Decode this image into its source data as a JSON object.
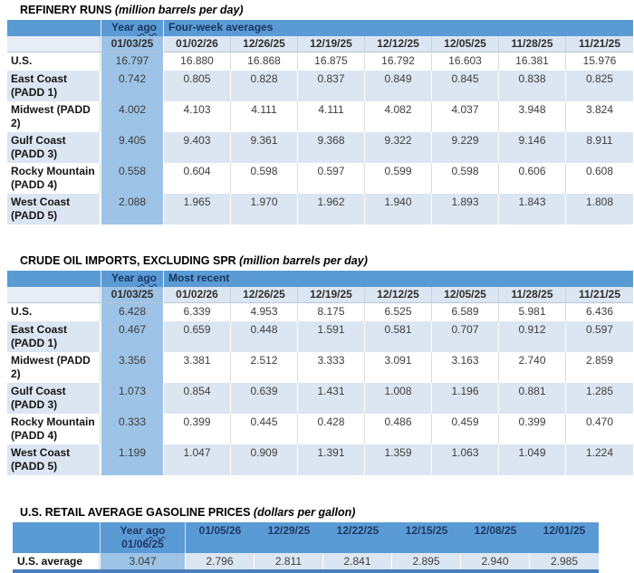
{
  "colors": {
    "header_blue": "#5b9bd5",
    "year_ago_band_blue": "#9dc3e6",
    "stripe_light_blue": "#dce6f2",
    "bottom_bar_blue": "#4a7ebc",
    "header_text_navy": "#17365d"
  },
  "tables": [
    {
      "title": "REFINERY RUNS",
      "title_unit": "(million barrels per day)",
      "year_ago_label": "Year ago",
      "group_label": "Four-week averages",
      "year_ago_date": "01/03/25",
      "dates": [
        "01/02/26",
        "12/26/25",
        "12/19/25",
        "12/12/25",
        "12/05/25",
        "11/28/25",
        "11/21/25"
      ],
      "rows": [
        {
          "label": "U.S.",
          "year_ago": "16.797",
          "values": [
            "16.880",
            "16.868",
            "16.875",
            "16.792",
            "16.603",
            "16.381",
            "15.976"
          ]
        },
        {
          "label": "East Coast (PADD 1)",
          "year_ago": "0.742",
          "values": [
            "0.805",
            "0.828",
            "0.837",
            "0.849",
            "0.845",
            "0.838",
            "0.825"
          ]
        },
        {
          "label": "Midwest (PADD 2)",
          "year_ago": "4.002",
          "values": [
            "4.103",
            "4.111",
            "4.111",
            "4.082",
            "4.037",
            "3.948",
            "3.824"
          ]
        },
        {
          "label": "Gulf Coast (PADD 3)",
          "year_ago": "9.405",
          "values": [
            "9.403",
            "9.361",
            "9.368",
            "9.322",
            "9.229",
            "9.146",
            "8.911"
          ]
        },
        {
          "label": "Rocky Mountain (PADD 4)",
          "year_ago": "0.558",
          "values": [
            "0.604",
            "0.598",
            "0.597",
            "0.599",
            "0.598",
            "0.606",
            "0.608"
          ]
        },
        {
          "label": "West Coast (PADD 5)",
          "year_ago": "2.088",
          "values": [
            "1.965",
            "1.970",
            "1.962",
            "1.940",
            "1.893",
            "1.843",
            "1.808"
          ]
        }
      ]
    },
    {
      "title": "CRUDE OIL IMPORTS, EXCLUDING SPR",
      "title_unit": "(million barrels per day)",
      "year_ago_label": "Year ago",
      "group_label": "Most recent",
      "year_ago_date": "01/03/25",
      "dates": [
        "01/02/26",
        "12/26/25",
        "12/19/25",
        "12/12/25",
        "12/05/25",
        "11/28/25",
        "11/21/25"
      ],
      "rows": [
        {
          "label": "U.S.",
          "year_ago": "6.428",
          "values": [
            "6.339",
            "4.953",
            "8.175",
            "6.525",
            "6.589",
            "5.981",
            "6.436"
          ]
        },
        {
          "label": "East Coast (PADD 1)",
          "year_ago": "0.467",
          "values": [
            "0.659",
            "0.448",
            "1.591",
            "0.581",
            "0.707",
            "0.912",
            "0.597"
          ]
        },
        {
          "label": "Midwest (PADD 2)",
          "year_ago": "3.356",
          "values": [
            "3.381",
            "2.512",
            "3.333",
            "3.091",
            "3.163",
            "2.740",
            "2.859"
          ]
        },
        {
          "label": "Gulf Coast (PADD 3)",
          "year_ago": "1.073",
          "values": [
            "0.854",
            "0.639",
            "1.431",
            "1.008",
            "1.196",
            "0.881",
            "1.285"
          ]
        },
        {
          "label": "Rocky Mountain (PADD 4)",
          "year_ago": "0.333",
          "values": [
            "0.399",
            "0.445",
            "0.428",
            "0.486",
            "0.459",
            "0.399",
            "0.470"
          ]
        },
        {
          "label": "West Coast (PADD 5)",
          "year_ago": "1.199",
          "values": [
            "1.047",
            "0.909",
            "1.391",
            "1.359",
            "1.063",
            "1.049",
            "1.224"
          ]
        }
      ]
    },
    {
      "title": "U.S. RETAIL AVERAGE GASOLINE PRICES",
      "title_unit": "(dollars per gallon)",
      "year_ago_label": "Year ago",
      "year_ago_date": "01/06/25",
      "dates": [
        "01/05/26",
        "12/29/25",
        "12/22/25",
        "12/15/25",
        "12/08/25",
        "12/01/25"
      ],
      "rows": [
        {
          "label": "U.S. average",
          "year_ago": "3.047",
          "values": [
            "2.796",
            "2.811",
            "2.841",
            "2.895",
            "2.940",
            "2.985"
          ]
        }
      ]
    }
  ]
}
